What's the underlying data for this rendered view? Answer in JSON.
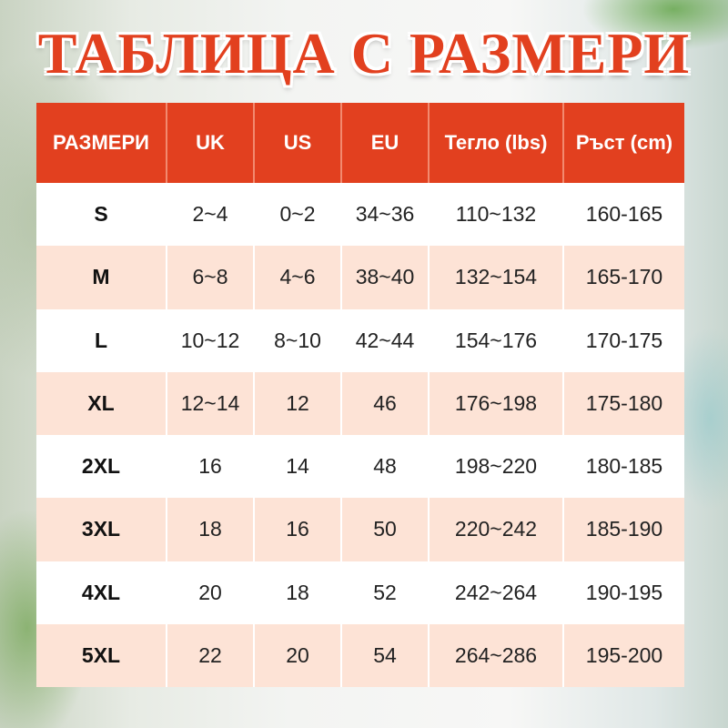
{
  "title": "ТАБЛИЦА С РАЗМЕРИ",
  "colors": {
    "header": "#e2401f",
    "row_alt": "#fde3d6",
    "title": "#e2401f"
  },
  "table": {
    "headers": [
      "РАЗМЕРИ",
      "UK",
      "US",
      "EU",
      "Тегло (lbs)",
      "Ръст (cm)"
    ],
    "rows": [
      [
        "S",
        "2~4",
        "0~2",
        "34~36",
        "110~132",
        "160-165"
      ],
      [
        "M",
        "6~8",
        "4~6",
        "38~40",
        "132~154",
        "165-170"
      ],
      [
        "L",
        "10~12",
        "8~10",
        "42~44",
        "154~176",
        "170-175"
      ],
      [
        "XL",
        "12~14",
        "12",
        "46",
        "176~198",
        "175-180"
      ],
      [
        "2XL",
        "16",
        "14",
        "48",
        "198~220",
        "180-185"
      ],
      [
        "3XL",
        "18",
        "16",
        "50",
        "220~242",
        "185-190"
      ],
      [
        "4XL",
        "20",
        "18",
        "52",
        "242~264",
        "190-195"
      ],
      [
        "5XL",
        "22",
        "20",
        "54",
        "264~286",
        "195-200"
      ]
    ]
  }
}
